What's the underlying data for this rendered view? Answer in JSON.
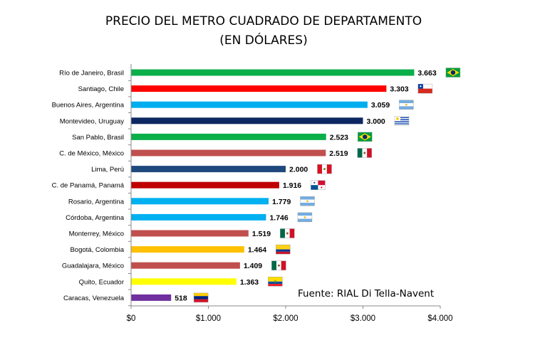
{
  "chart_data": {
    "type": "bar",
    "orientation": "horizontal",
    "title": "PRECIO DEL METRO CUADRADO DE DEPARTAMENTO",
    "subtitle": "(EN DÓLARES)",
    "xlabel": "",
    "ylabel": "",
    "xlim": [
      0,
      4000
    ],
    "grid": false,
    "legend": "none",
    "categories": [
      "Río de Janeiro, Brasil",
      "Santiago, Chile",
      "Buenos Aires, Argentina",
      "Montevideo, Uruguay",
      "San Pablo, Brasil",
      "C. de México, México",
      "Lima, Perú",
      "C. de Panamá, Panamá",
      "Rosario, Argentina",
      "Córdoba, Argentina",
      "Monterrey, México",
      "Bogotá, Colombia",
      "Guadalajara, México",
      "Quito, Ecuador",
      "Caracas, Venezuela"
    ],
    "values": [
      3663,
      3303,
      3059,
      3000,
      2523,
      2519,
      2000,
      1916,
      1779,
      1746,
      1519,
      1464,
      1409,
      1363,
      518
    ],
    "value_labels": [
      "3.663",
      "3.303",
      "3.059",
      "3.000",
      "2.523",
      "2.519",
      "2.000",
      "1.916",
      "1.779",
      "1.746",
      "1.519",
      "1.464",
      "1.409",
      "1.363",
      "518"
    ],
    "bar_colors": [
      "#0aaf4a",
      "#fe0000",
      "#00aeef",
      "#0c2761",
      "#0aaf4a",
      "#c0504d",
      "#1f497d",
      "#c00000",
      "#00b0f0",
      "#00b0f0",
      "#c0504d",
      "#ffc000",
      "#c0504d",
      "#ffff00",
      "#7030a0"
    ],
    "flags": [
      "brazil-flag",
      "chile-flag",
      "argentina-flag",
      "uruguay-flag",
      "brazil-flag",
      "mexico-flag",
      "peru-flag",
      "panama-flag",
      "argentina-flag",
      "argentina-flag",
      "mexico-flag",
      "colombia-flag",
      "mexico-flag",
      "ecuador-flag",
      "venezuela-flag"
    ],
    "xticks": [
      0,
      1000,
      2000,
      3000,
      4000
    ],
    "xtick_labels": [
      "$0",
      "$1.000",
      "$2.000",
      "$3.000",
      "$4.000"
    ],
    "annotation": "Fuente: RIAL Di Tella-Navent"
  }
}
